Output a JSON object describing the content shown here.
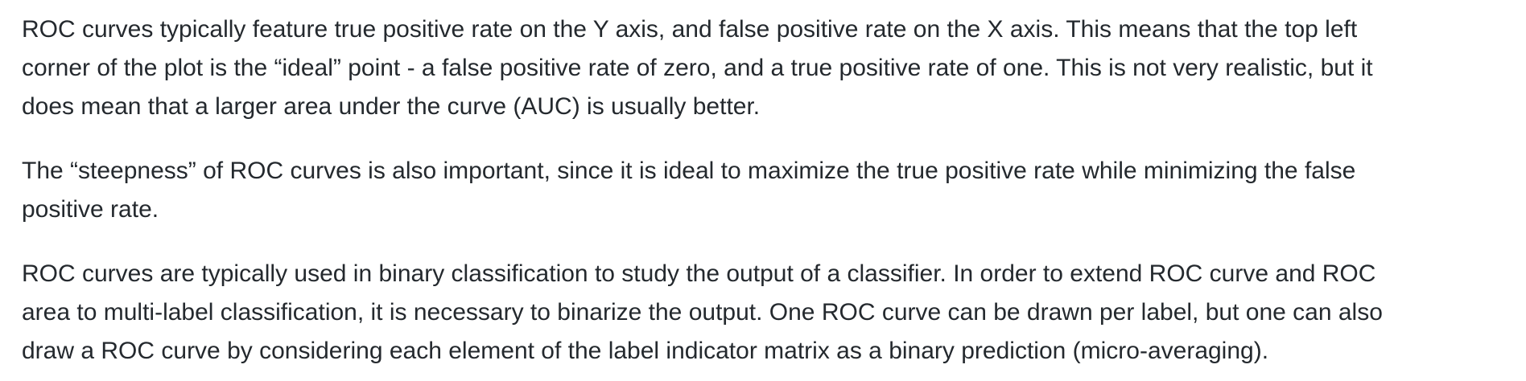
{
  "paragraphs": [
    {
      "lines": [
        "ROC curves typically feature true positive rate on the Y axis, and false positive rate on the X axis. This means that the top left",
        "corner of the plot is the “ideal” point - a false positive rate of zero, and a true positive rate of one. This is not very realistic, but it",
        "does mean that a larger area under the curve (AUC) is usually better."
      ]
    },
    {
      "lines": [
        "The “steepness” of ROC curves is also important, since it is ideal to maximize the true positive rate while minimizing the false",
        "positive rate."
      ]
    },
    {
      "lines": [
        "ROC curves are typically used in binary classification to study the output of a classifier. In order to extend ROC curve and ROC",
        "area to multi-label classification, it is necessary to binarize the output. One ROC curve can be drawn per label, but one can also",
        "draw a ROC curve by considering each element of the label indicator matrix as a binary prediction (micro-averaging)."
      ]
    }
  ]
}
